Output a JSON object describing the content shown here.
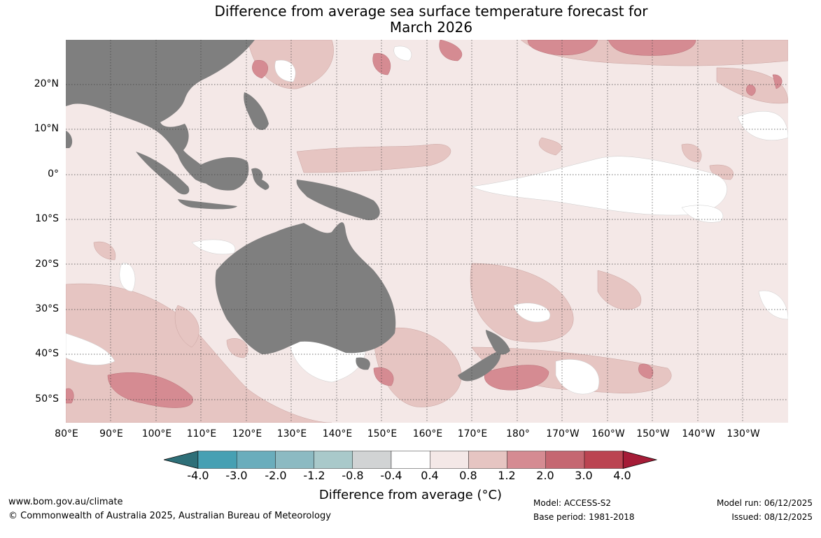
{
  "title": {
    "line1": "Difference from average sea surface temperature forecast for",
    "line2": "March 2026"
  },
  "lat_labels": [
    "20°N",
    "10°N",
    "0°",
    "10°S",
    "20°S",
    "30°S",
    "40°S",
    "50°S"
  ],
  "lon_labels": [
    "80°E",
    "90°E",
    "100°E",
    "110°E",
    "120°E",
    "130°E",
    "140°E",
    "150°E",
    "160°E",
    "170°E",
    "180°",
    "170°W",
    "160°W",
    "150°W",
    "140°W",
    "130°W"
  ],
  "colorbar": {
    "ticks": [
      "-4.0",
      "-3.0",
      "-2.0",
      "-1.2",
      "-0.8",
      "-0.4",
      "0.4",
      "0.8",
      "1.2",
      "2.0",
      "3.0",
      "4.0"
    ],
    "colors": [
      "#2e6f78",
      "#46a0b3",
      "#6aadbc",
      "#8cbac2",
      "#a9c9ca",
      "#d1d3d4",
      "#ffffff",
      "#f4e8e7",
      "#e6c5c2",
      "#d58b92",
      "#c56771",
      "#bb4451",
      "#a51c37"
    ],
    "label": "Difference from average (°C)"
  },
  "footer": {
    "website": "www.bom.gov.au/climate",
    "copyright": "© Commonwealth of Australia 2025, Australian Bureau of Meteorology",
    "model": "Model: ACCESS-S2",
    "base_period": "Base period: 1981-2018",
    "model_run": "Model run: 06/12/2025",
    "issued": "Issued: 08/12/2025"
  }
}
